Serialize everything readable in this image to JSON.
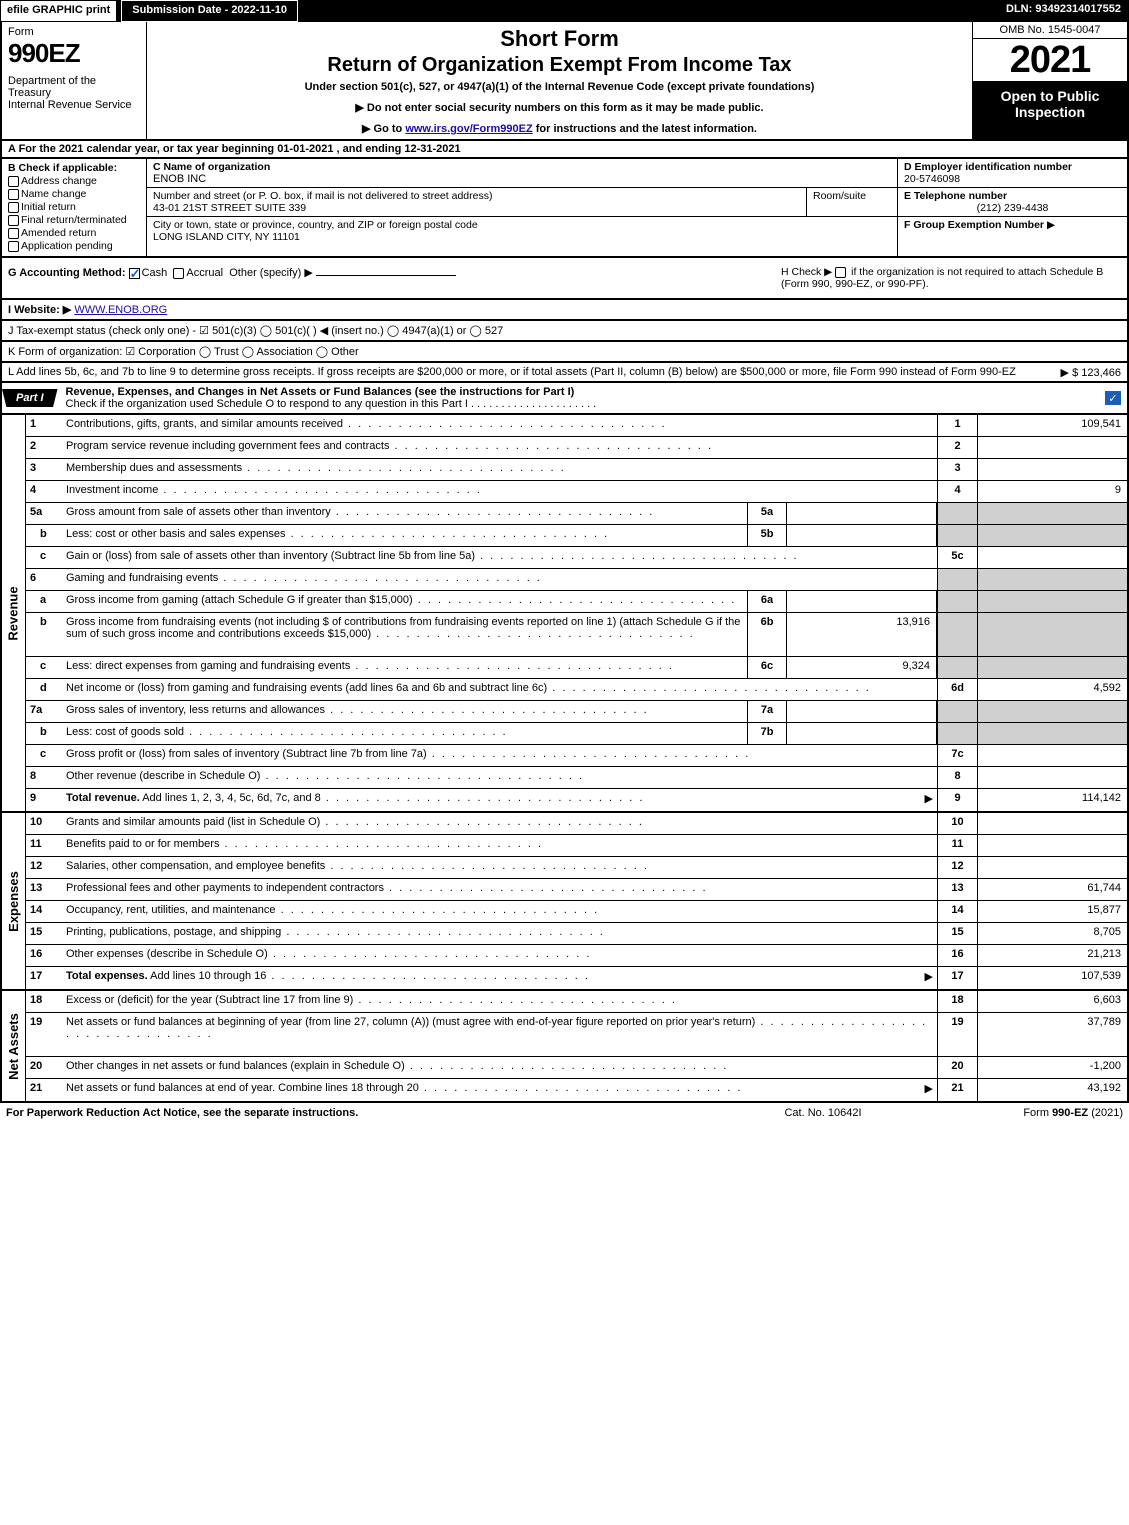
{
  "topbar": {
    "efile": "efile GRAPHIC print",
    "subdate": "Submission Date - 2022-11-10",
    "dln": "DLN: 93492314017552"
  },
  "header": {
    "form_word": "Form",
    "form_num": "990EZ",
    "dept": "Department of the Treasury\nInternal Revenue Service",
    "short": "Short Form",
    "ret": "Return of Organization Exempt From Income Tax",
    "under": "Under section 501(c), 527, or 4947(a)(1) of the Internal Revenue Code (except private foundations)",
    "note1": "▶ Do not enter social security numbers on this form as it may be made public.",
    "note2_pre": "▶ Go to ",
    "note2_link": "www.irs.gov/Form990EZ",
    "note2_post": " for instructions and the latest information.",
    "omb": "OMB No. 1545-0047",
    "year": "2021",
    "open": "Open to Public Inspection"
  },
  "rowA": "A  For the 2021 calendar year, or tax year beginning 01-01-2021 , and ending 12-31-2021",
  "B": {
    "title": "B  Check if applicable:",
    "opts": [
      "Address change",
      "Name change",
      "Initial return",
      "Final return/terminated",
      "Amended return",
      "Application pending"
    ]
  },
  "C": {
    "name_lbl": "C Name of organization",
    "name": "ENOB INC",
    "street_lbl": "Number and street (or P. O. box, if mail is not delivered to street address)",
    "street": "43-01 21ST STREET SUITE 339",
    "room_lbl": "Room/suite",
    "city_lbl": "City or town, state or province, country, and ZIP or foreign postal code",
    "city": "LONG ISLAND CITY, NY  11101"
  },
  "D": {
    "lbl": "D Employer identification number",
    "val": "20-5746098"
  },
  "E": {
    "lbl": "E Telephone number",
    "val": "(212) 239-4438"
  },
  "F": {
    "lbl": "F Group Exemption Number",
    "arrow": "▶"
  },
  "G": {
    "lbl": "G Accounting Method:",
    "cash": "Cash",
    "accrual": "Accrual",
    "other": "Other (specify) ▶"
  },
  "H": {
    "text1": "H  Check ▶",
    "text2": "if the organization is not required to attach Schedule B (Form 990, 990-EZ, or 990-PF)."
  },
  "I": {
    "lbl": "I Website: ▶",
    "val": "WWW.ENOB.ORG"
  },
  "J": "J Tax-exempt status (check only one) -  ☑ 501(c)(3)  ◯ 501(c)(  ) ◀ (insert no.)  ◯ 4947(a)(1) or  ◯ 527",
  "K": "K Form of organization:  ☑ Corporation  ◯ Trust  ◯ Association  ◯ Other",
  "L": {
    "text": "L Add lines 5b, 6c, and 7b to line 9 to determine gross receipts. If gross receipts are $200,000 or more, or if total assets (Part II, column (B) below) are $500,000 or more, file Form 990 instead of Form 990-EZ",
    "amount": "▶ $ 123,466"
  },
  "part1": {
    "tab": "Part I",
    "title": "Revenue, Expenses, and Changes in Net Assets or Fund Balances (see the instructions for Part I)",
    "sub": "Check if the organization used Schedule O to respond to any question in this Part I"
  },
  "revenue": [
    {
      "n": "1",
      "d": "Contributions, gifts, grants, and similar amounts received",
      "rn": "1",
      "rv": "109,541"
    },
    {
      "n": "2",
      "d": "Program service revenue including government fees and contracts",
      "rn": "2",
      "rv": ""
    },
    {
      "n": "3",
      "d": "Membership dues and assessments",
      "rn": "3",
      "rv": ""
    },
    {
      "n": "4",
      "d": "Investment income",
      "rn": "4",
      "rv": "9"
    },
    {
      "n": "5a",
      "d": "Gross amount from sale of assets other than inventory",
      "in": "5a",
      "iv": "",
      "grey": true
    },
    {
      "n": "b",
      "sub": true,
      "d": "Less: cost or other basis and sales expenses",
      "in": "5b",
      "iv": "",
      "grey": true
    },
    {
      "n": "c",
      "sub": true,
      "d": "Gain or (loss) from sale of assets other than inventory (Subtract line 5b from line 5a)",
      "rn": "5c",
      "rv": ""
    },
    {
      "n": "6",
      "d": "Gaming and fundraising events",
      "grey": true,
      "noval": true
    },
    {
      "n": "a",
      "sub": true,
      "d": "Gross income from gaming (attach Schedule G if greater than $15,000)",
      "in": "6a",
      "iv": "",
      "grey": true
    },
    {
      "n": "b",
      "sub": true,
      "d": "Gross income from fundraising events (not including $                    of contributions from fundraising events reported on line 1) (attach Schedule G if the sum of such gross income and contributions exceeds $15,000)",
      "in": "6b",
      "iv": "13,916",
      "grey": true,
      "tall": true
    },
    {
      "n": "c",
      "sub": true,
      "d": "Less: direct expenses from gaming and fundraising events",
      "in": "6c",
      "iv": "9,324",
      "grey": true
    },
    {
      "n": "d",
      "sub": true,
      "d": "Net income or (loss) from gaming and fundraising events (add lines 6a and 6b and subtract line 6c)",
      "rn": "6d",
      "rv": "4,592"
    },
    {
      "n": "7a",
      "d": "Gross sales of inventory, less returns and allowances",
      "in": "7a",
      "iv": "",
      "grey": true
    },
    {
      "n": "b",
      "sub": true,
      "d": "Less: cost of goods sold",
      "in": "7b",
      "iv": "",
      "grey": true
    },
    {
      "n": "c",
      "sub": true,
      "d": "Gross profit or (loss) from sales of inventory (Subtract line 7b from line 7a)",
      "rn": "7c",
      "rv": ""
    },
    {
      "n": "8",
      "d": "Other revenue (describe in Schedule O)",
      "rn": "8",
      "rv": ""
    },
    {
      "n": "9",
      "d": "Total revenue. Add lines 1, 2, 3, 4, 5c, 6d, 7c, and 8",
      "rn": "9",
      "rv": "114,142",
      "bold": true,
      "arrow": true
    }
  ],
  "expenses": [
    {
      "n": "10",
      "d": "Grants and similar amounts paid (list in Schedule O)",
      "rn": "10",
      "rv": ""
    },
    {
      "n": "11",
      "d": "Benefits paid to or for members",
      "rn": "11",
      "rv": ""
    },
    {
      "n": "12",
      "d": "Salaries, other compensation, and employee benefits",
      "rn": "12",
      "rv": ""
    },
    {
      "n": "13",
      "d": "Professional fees and other payments to independent contractors",
      "rn": "13",
      "rv": "61,744"
    },
    {
      "n": "14",
      "d": "Occupancy, rent, utilities, and maintenance",
      "rn": "14",
      "rv": "15,877"
    },
    {
      "n": "15",
      "d": "Printing, publications, postage, and shipping",
      "rn": "15",
      "rv": "8,705"
    },
    {
      "n": "16",
      "d": "Other expenses (describe in Schedule O)",
      "rn": "16",
      "rv": "21,213"
    },
    {
      "n": "17",
      "d": "Total expenses. Add lines 10 through 16",
      "rn": "17",
      "rv": "107,539",
      "bold": true,
      "arrow": true
    }
  ],
  "netassets": [
    {
      "n": "18",
      "d": "Excess or (deficit) for the year (Subtract line 17 from line 9)",
      "rn": "18",
      "rv": "6,603"
    },
    {
      "n": "19",
      "d": "Net assets or fund balances at beginning of year (from line 27, column (A)) (must agree with end-of-year figure reported on prior year's return)",
      "rn": "19",
      "rv": "37,789",
      "tall": true
    },
    {
      "n": "20",
      "d": "Other changes in net assets or fund balances (explain in Schedule O)",
      "rn": "20",
      "rv": "-1,200"
    },
    {
      "n": "21",
      "d": "Net assets or fund balances at end of year. Combine lines 18 through 20",
      "rn": "21",
      "rv": "43,192",
      "arrow": true
    }
  ],
  "sidelabels": {
    "rev": "Revenue",
    "exp": "Expenses",
    "na": "Net Assets"
  },
  "footer": {
    "l": "For Paperwork Reduction Act Notice, see the separate instructions.",
    "c": "Cat. No. 10642I",
    "r_pre": "Form ",
    "r_bold": "990-EZ",
    "r_post": " (2021)"
  }
}
